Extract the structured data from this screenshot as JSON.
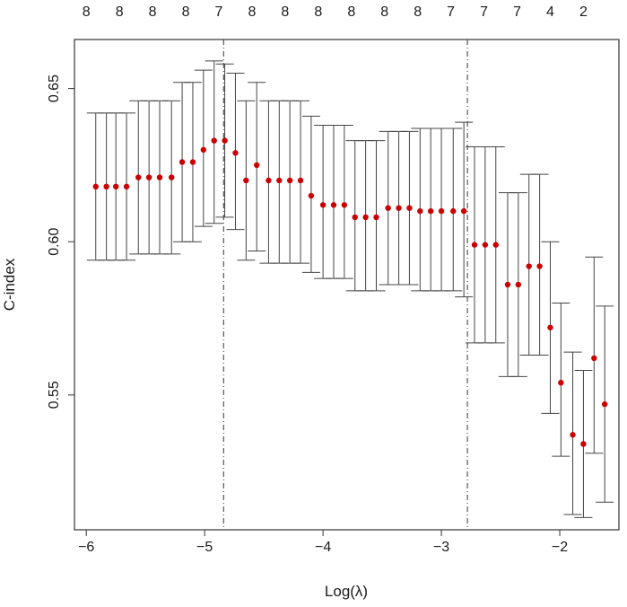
{
  "chart_data": {
    "type": "scatter",
    "xlabel": "Log(λ)",
    "ylabel": "C-index",
    "xlim": [
      -6.1,
      -1.5
    ],
    "ylim": [
      0.506,
      0.666
    ],
    "x_ticks": [
      -6,
      -5,
      -4,
      -3,
      -2
    ],
    "x_tick_labels": [
      "−6",
      "−5",
      "−4",
      "−3",
      "−2"
    ],
    "y_ticks": [
      0.55,
      0.6,
      0.65
    ],
    "y_tick_labels": [
      "0.55",
      "0.60",
      "0.65"
    ],
    "vlines": [
      -4.84,
      -2.78
    ],
    "top_axis": {
      "positions": [
        -6,
        -5.72,
        -5.44,
        -5.16,
        -4.88,
        -4.6,
        -4.32,
        -4.04,
        -3.76,
        -3.48,
        -3.2,
        -2.92,
        -2.64,
        -2.36,
        -2.08,
        -1.8
      ],
      "labels": [
        "8",
        "8",
        "8",
        "8",
        "7",
        "8",
        "8",
        "8",
        "8",
        "8",
        "8",
        "7",
        "7",
        "7",
        "4",
        "2"
      ]
    },
    "series": [
      {
        "point_color": "#cc0000",
        "bar_color": "#444444",
        "x": [
          -5.92,
          -5.83,
          -5.75,
          -5.66,
          -5.56,
          -5.47,
          -5.38,
          -5.28,
          -5.19,
          -5.1,
          -5.01,
          -4.92,
          -4.83,
          -4.74,
          -4.65,
          -4.56,
          -4.46,
          -4.37,
          -4.28,
          -4.19,
          -4.1,
          -4.0,
          -3.91,
          -3.82,
          -3.73,
          -3.64,
          -3.55,
          -3.45,
          -3.36,
          -3.27,
          -3.18,
          -3.09,
          -3.0,
          -2.9,
          -2.81,
          -2.72,
          -2.63,
          -2.54,
          -2.44,
          -2.35,
          -2.26,
          -2.17,
          -2.08,
          -1.99,
          -1.89,
          -1.8,
          -1.71,
          -1.62
        ],
        "y": [
          0.618,
          0.618,
          0.618,
          0.618,
          0.621,
          0.621,
          0.621,
          0.621,
          0.626,
          0.626,
          0.63,
          0.633,
          0.633,
          0.629,
          0.62,
          0.625,
          0.62,
          0.62,
          0.62,
          0.62,
          0.615,
          0.612,
          0.612,
          0.612,
          0.608,
          0.608,
          0.608,
          0.611,
          0.611,
          0.611,
          0.61,
          0.61,
          0.61,
          0.61,
          0.61,
          0.599,
          0.599,
          0.599,
          0.586,
          0.586,
          0.592,
          0.592,
          0.572,
          0.554,
          0.537,
          0.534,
          0.562,
          0.547
        ],
        "lower": [
          0.594,
          0.594,
          0.594,
          0.594,
          0.596,
          0.596,
          0.596,
          0.596,
          0.6,
          0.6,
          0.605,
          0.606,
          0.608,
          0.604,
          0.594,
          0.597,
          0.593,
          0.593,
          0.593,
          0.593,
          0.59,
          0.588,
          0.588,
          0.588,
          0.584,
          0.584,
          0.584,
          0.586,
          0.586,
          0.586,
          0.584,
          0.584,
          0.584,
          0.584,
          0.582,
          0.567,
          0.567,
          0.567,
          0.556,
          0.556,
          0.563,
          0.563,
          0.544,
          0.53,
          0.511,
          0.51,
          0.531,
          0.515
        ],
        "upper": [
          0.642,
          0.642,
          0.642,
          0.642,
          0.646,
          0.646,
          0.646,
          0.646,
          0.652,
          0.652,
          0.656,
          0.659,
          0.658,
          0.655,
          0.646,
          0.652,
          0.646,
          0.646,
          0.646,
          0.646,
          0.641,
          0.638,
          0.638,
          0.638,
          0.633,
          0.633,
          0.633,
          0.636,
          0.636,
          0.636,
          0.637,
          0.637,
          0.637,
          0.637,
          0.639,
          0.631,
          0.631,
          0.631,
          0.616,
          0.616,
          0.622,
          0.622,
          0.6,
          0.58,
          0.564,
          0.558,
          0.595,
          0.579
        ]
      }
    ]
  }
}
